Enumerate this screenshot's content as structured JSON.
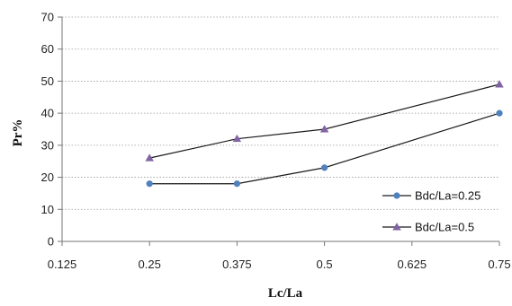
{
  "chart_data": {
    "type": "line",
    "title": "",
    "xlabel": "Lc/La",
    "ylabel": "Pr%",
    "xlim": [
      0.125,
      0.75
    ],
    "ylim": [
      0,
      70
    ],
    "xticks": [
      0.125,
      0.25,
      0.375,
      0.5,
      0.625,
      0.75
    ],
    "xtick_labels": [
      "0.125",
      "0.25",
      "0.375",
      "0.5",
      "0.625",
      "0.75"
    ],
    "yticks": [
      0,
      10,
      20,
      30,
      40,
      50,
      60,
      70
    ],
    "ytick_labels": [
      "0",
      "10",
      "20",
      "30",
      "40",
      "50",
      "60",
      "70"
    ],
    "grid": true,
    "legend_position": "bottom-right",
    "series": [
      {
        "name": "Bdc/La=0.25",
        "marker": "circle",
        "color": "#4f81bd",
        "x": [
          0.25,
          0.375,
          0.5,
          0.75
        ],
        "y": [
          18,
          18,
          23,
          40
        ]
      },
      {
        "name": "Bdc/La=0.5",
        "marker": "triangle",
        "color": "#8064a2",
        "x": [
          0.25,
          0.375,
          0.5,
          0.75
        ],
        "y": [
          26,
          32,
          35,
          49
        ]
      }
    ],
    "line_color": "#1a1a1a"
  }
}
